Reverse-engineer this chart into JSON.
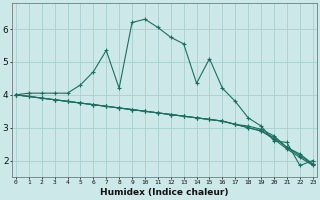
{
  "xlabel": "Humidex (Indice chaleur)",
  "background_color": "#cce8e8",
  "grid_color": "#aacfcf",
  "line_color": "#1a7060",
  "x_ticks": [
    0,
    1,
    2,
    3,
    4,
    5,
    6,
    7,
    8,
    9,
    10,
    11,
    12,
    13,
    14,
    15,
    16,
    17,
    18,
    19,
    20,
    21,
    22,
    23
  ],
  "y_ticks": [
    2,
    3,
    4,
    5,
    6
  ],
  "ylim": [
    1.5,
    6.8
  ],
  "xlim": [
    -0.3,
    23.3
  ],
  "series": [
    {
      "x": [
        0,
        1,
        2,
        3,
        4,
        5,
        6,
        7,
        8,
        9,
        10,
        11,
        12,
        13,
        14,
        15,
        16,
        17,
        18,
        19,
        20,
        21,
        22,
        23
      ],
      "y": [
        4.0,
        4.05,
        4.05,
        4.05,
        4.05,
        4.3,
        4.7,
        5.35,
        4.2,
        6.2,
        6.3,
        6.05,
        5.75,
        5.55,
        4.35,
        5.1,
        4.2,
        3.8,
        3.3,
        3.05,
        2.6,
        2.55,
        1.85,
        2.0
      ]
    },
    {
      "x": [
        0,
        1,
        2,
        3,
        4,
        5,
        6,
        7,
        8,
        9,
        10,
        11,
        12,
        13,
        14,
        15,
        16,
        17,
        18,
        19,
        20,
        21,
        22,
        23
      ],
      "y": [
        4.0,
        3.95,
        3.9,
        3.85,
        3.8,
        3.75,
        3.7,
        3.65,
        3.6,
        3.55,
        3.5,
        3.45,
        3.4,
        3.35,
        3.3,
        3.25,
        3.2,
        3.1,
        3.05,
        2.95,
        2.75,
        2.4,
        2.2,
        1.9
      ]
    },
    {
      "x": [
        0,
        1,
        2,
        3,
        4,
        5,
        6,
        7,
        8,
        9,
        10,
        11,
        12,
        13,
        14,
        15,
        16,
        17,
        18,
        19,
        20,
        21,
        22,
        23
      ],
      "y": [
        4.0,
        3.95,
        3.9,
        3.85,
        3.8,
        3.75,
        3.7,
        3.65,
        3.6,
        3.55,
        3.5,
        3.45,
        3.4,
        3.35,
        3.3,
        3.25,
        3.2,
        3.1,
        3.0,
        2.9,
        2.7,
        2.4,
        2.15,
        1.88
      ]
    },
    {
      "x": [
        0,
        1,
        2,
        3,
        4,
        5,
        6,
        7,
        8,
        9,
        10,
        11,
        12,
        13,
        14,
        15,
        16,
        17,
        18,
        19,
        20,
        21,
        22,
        23
      ],
      "y": [
        4.0,
        3.95,
        3.9,
        3.85,
        3.8,
        3.75,
        3.7,
        3.65,
        3.6,
        3.55,
        3.5,
        3.45,
        3.4,
        3.35,
        3.3,
        3.25,
        3.2,
        3.1,
        3.0,
        2.9,
        2.65,
        2.35,
        2.1,
        1.85
      ]
    }
  ]
}
